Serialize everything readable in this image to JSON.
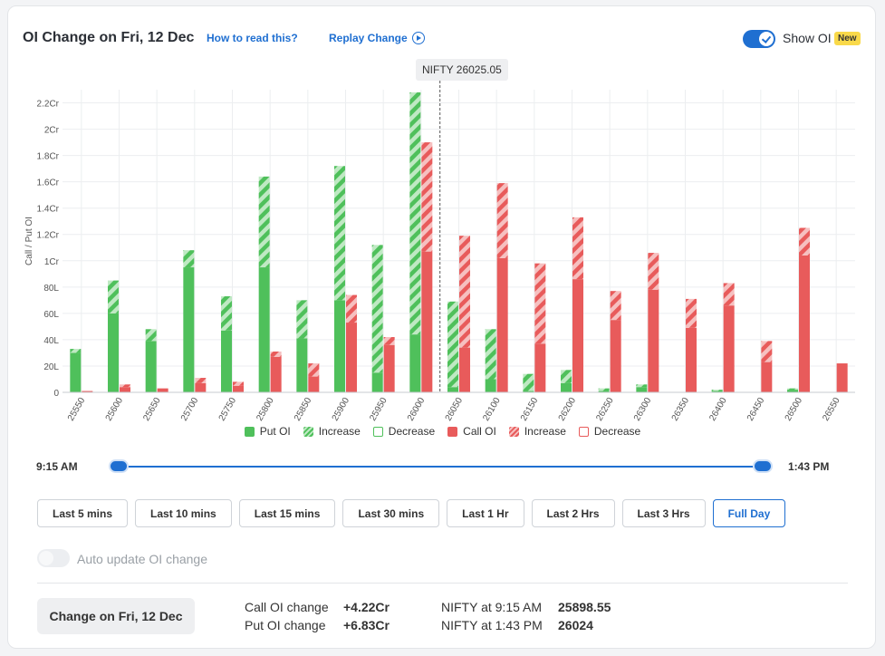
{
  "header": {
    "title": "OI Change on Fri, 12 Dec",
    "how_to_read": "How to read this?",
    "replay": "Replay Change",
    "show_oi": "Show OI",
    "badge": "New"
  },
  "spot_label": "NIFTY 26025.05",
  "legend": [
    "Put OI",
    "Increase",
    "Decrease",
    "Call OI",
    "Increase",
    "Decrease"
  ],
  "slider": {
    "start": "9:15 AM",
    "end": "1:43 PM"
  },
  "buttons": [
    "Last 5 mins",
    "Last 10 mins",
    "Last 15 mins",
    "Last 30 mins",
    "Last 1 Hr",
    "Last 2 Hrs",
    "Last 3 Hrs",
    "Full Day"
  ],
  "active_button": "Full Day",
  "auto_update_label": "Auto update OI change",
  "summary": {
    "change_button": "Change on Fri, 12 Dec",
    "call_label": "Call OI change",
    "call_value": "+4.22Cr",
    "put_label": "Put OI change",
    "put_value": "+6.83Cr",
    "nifty_start_label": "NIFTY at 9:15 AM",
    "nifty_start_value": "25898.55",
    "nifty_end_label": "NIFTY at 1:43 PM",
    "nifty_end_value": "26024"
  },
  "colors": {
    "put": "#4fc05b",
    "put_light": "#bfe9c3",
    "call": "#e85b5b",
    "call_light": "#f6c0c0",
    "accent": "#1f6fd1"
  },
  "chart_data": {
    "type": "bar",
    "ylabel": "Call / Put OI",
    "ylim": [
      0,
      23000000
    ],
    "yticks": [
      0,
      2000000,
      4000000,
      6000000,
      8000000,
      10000000,
      12000000,
      14000000,
      16000000,
      18000000,
      20000000,
      22000000
    ],
    "ytick_labels": [
      "0",
      "20L",
      "40L",
      "60L",
      "80L",
      "1Cr",
      "1.2Cr",
      "1.4Cr",
      "1.6Cr",
      "1.8Cr",
      "2Cr",
      "2.2Cr"
    ],
    "categories": [
      "25550",
      "25600",
      "25650",
      "25700",
      "25750",
      "25800",
      "25850",
      "25900",
      "25950",
      "26000",
      "26050",
      "26100",
      "26150",
      "26200",
      "26250",
      "26300",
      "26350",
      "26400",
      "26450",
      "26500",
      "26550"
    ],
    "spot": 26025.05,
    "series": [
      {
        "name": "Put OI",
        "base": [
          3000000,
          6000000,
          3900000,
          9500000,
          4700000,
          9500000,
          4100000,
          7000000,
          1500000,
          4400000,
          400000,
          1000000,
          100000,
          700000,
          100000,
          400000,
          0,
          100000,
          0,
          200000,
          0
        ],
        "change": [
          300000,
          2500000,
          900000,
          1300000,
          2600000,
          6900000,
          2900000,
          10200000,
          9700000,
          18400000,
          6500000,
          3800000,
          1300000,
          1000000,
          200000,
          200000,
          0,
          100000,
          0,
          100000,
          0
        ]
      },
      {
        "name": "Call OI",
        "base": [
          100000,
          400000,
          300000,
          700000,
          500000,
          2700000,
          1200000,
          5300000,
          3600000,
          10700000,
          3400000,
          10200000,
          3700000,
          8600000,
          5500000,
          7800000,
          4900000,
          6600000,
          2300000,
          10400000,
          2200000
        ],
        "change": [
          0,
          200000,
          0,
          400000,
          300000,
          400000,
          1000000,
          2100000,
          600000,
          8300000,
          8500000,
          5700000,
          6100000,
          4700000,
          2200000,
          2800000,
          2200000,
          1700000,
          1600000,
          2100000,
          0
        ]
      }
    ]
  }
}
